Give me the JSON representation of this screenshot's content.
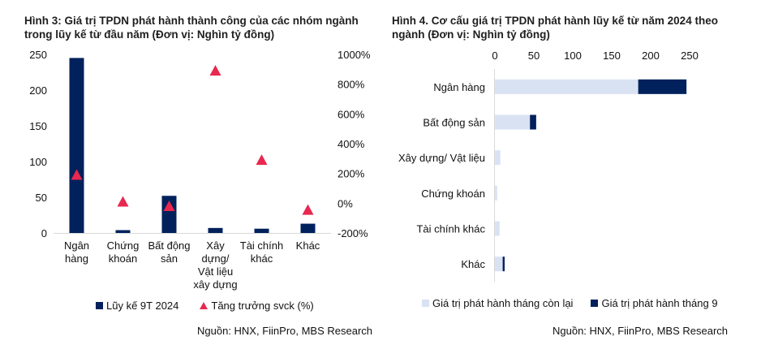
{
  "left": {
    "title_line1": "Hình 3: Giá trị TPDN phát hành thành công của các nhóm ngành",
    "title_line2": "trong lũy kế từ đầu năm (Đơn vị: Nghìn tỷ đồng)",
    "legend_bar": "Lũy kế 9T 2024",
    "legend_marker": "Tăng trưởng svck (%)",
    "source": "Nguồn: HNX, FiinPro, MBS Research"
  },
  "right": {
    "title_line1": "Hình 4. Cơ cấu giá trị TPDN phát hành lũy kế từ năm 2024 theo",
    "title_line2": "ngành (Đơn vị: Nghìn tỷ đồng)",
    "legend_a": "Giá trị phát hành tháng còn lại",
    "legend_b": "Giá trị phát hành tháng 9",
    "source": "Nguồn: HNX, FiinPro, MBS Research"
  },
  "colors": {
    "navy": "#00215c",
    "light": "#d9e2f3",
    "red": "#e8284f",
    "axis": "#d9d9d9"
  },
  "chart_data": [
    {
      "type": "bar",
      "title": "Hình 3: Giá trị TPDN phát hành thành công của các nhóm ngành trong lũy kế từ đầu năm (Đơn vị: Nghìn tỷ đồng)",
      "categories": [
        "Ngân hàng",
        "Chứng khoán",
        "Bất động sản",
        "Xây dựng/ Vật liệu xây dựng",
        "Tài chính khác",
        "Khác"
      ],
      "category_label_lines": [
        [
          "Ngân",
          "hàng"
        ],
        [
          "Chứng",
          "khoán"
        ],
        [
          "Bất động",
          "sản"
        ],
        [
          "Xây",
          "dựng/",
          "Vật liệu",
          "xây dựng"
        ],
        [
          "Tài chính",
          "khác"
        ],
        [
          "Khác"
        ]
      ],
      "series": [
        {
          "name": "Lũy kế 9T 2024",
          "type": "bar",
          "axis": "left",
          "values": [
            245,
            4,
            52,
            7,
            6,
            13
          ]
        },
        {
          "name": "Tăng trưởng svck (%)",
          "type": "scatter",
          "marker": "triangle",
          "axis": "right",
          "values": [
            190,
            10,
            -20,
            890,
            290,
            -45
          ]
        }
      ],
      "ylim": [
        0,
        250
      ],
      "yticks": [
        0,
        50,
        100,
        150,
        200,
        250
      ],
      "y2lim": [
        -200,
        1000
      ],
      "y2ticks": [
        "-200%",
        "0%",
        "200%",
        "400%",
        "600%",
        "800%",
        "1000%"
      ],
      "grid": false,
      "legend_position": "bottom"
    },
    {
      "type": "bar",
      "orientation": "horizontal",
      "stacked": true,
      "title": "Hình 4. Cơ cấu giá trị TPDN phát hành lũy kế từ năm 2024 theo ngành (Đơn vị: Nghìn tỷ đồng)",
      "categories": [
        "Ngân hàng",
        "Bất động sản",
        "Xây dựng/ Vật liệu",
        "Chứng khoán",
        "Tài chính khác",
        "Khác"
      ],
      "series": [
        {
          "name": "Giá trị phát hành tháng còn lại",
          "values": [
            184,
            45,
            7,
            3,
            6,
            10
          ]
        },
        {
          "name": "Giá trị phát hành tháng 9",
          "values": [
            62,
            8,
            0,
            0,
            0,
            2.5
          ]
        }
      ],
      "xlim": [
        0,
        250
      ],
      "xticks": [
        0,
        50,
        100,
        150,
        200,
        250
      ],
      "xaxis_position": "top",
      "grid": false,
      "legend_position": "bottom"
    }
  ]
}
